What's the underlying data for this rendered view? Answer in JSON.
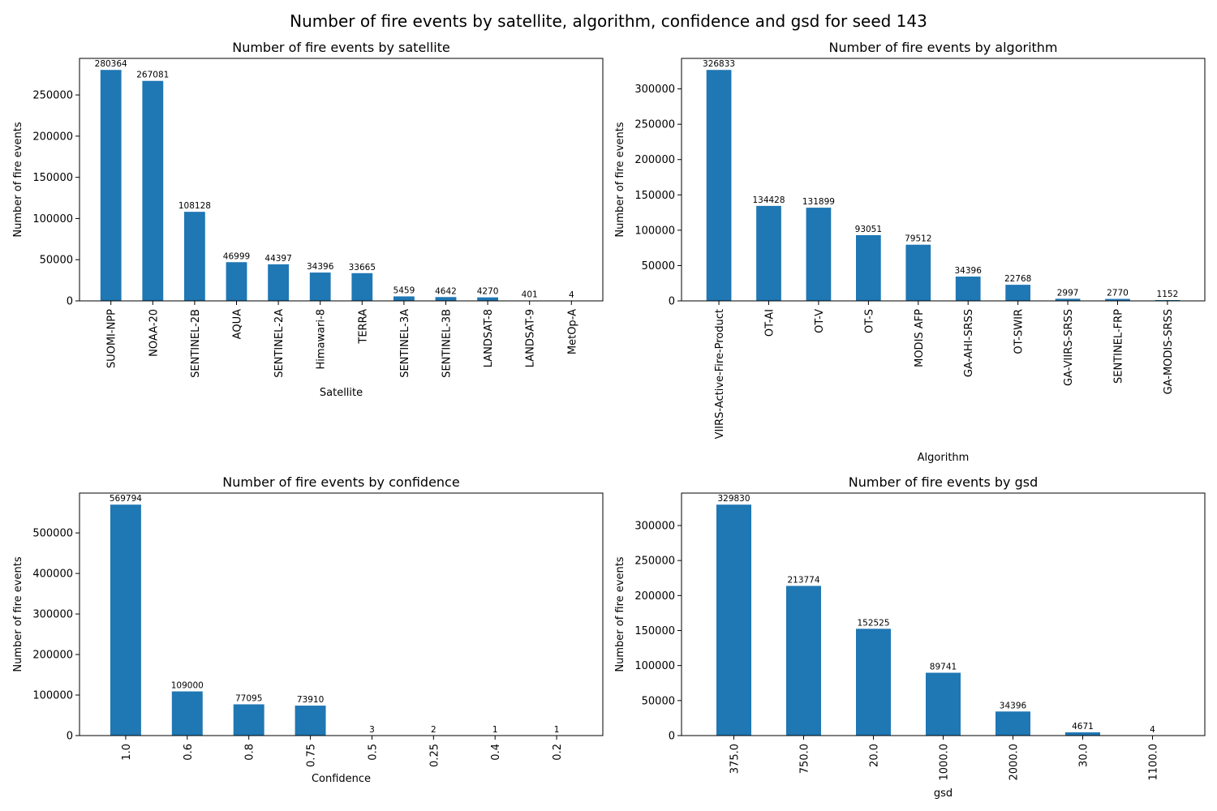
{
  "figure": {
    "suptitle": "Number of fire events by satellite, algorithm, confidence and gsd for seed 143"
  },
  "colors": {
    "bar": "#1f77b4",
    "axis": "#000000",
    "background": "#ffffff"
  },
  "chart_data": [
    {
      "type": "bar",
      "title": "Number of fire events by satellite",
      "xlabel": "Satellite",
      "ylabel": "Number of fire events",
      "categories": [
        "SUOMI-NPP",
        "NOAA-20",
        "SENTINEL-2B",
        "AQUA",
        "SENTINEL-2A",
        "Himawari-8",
        "TERRA",
        "SENTINEL-3A",
        "SENTINEL-3B",
        "LANDSAT-8",
        "LANDSAT-9",
        "MetOp-A"
      ],
      "values": [
        280364,
        267081,
        108128,
        46999,
        44397,
        34396,
        33665,
        5459,
        4642,
        4270,
        401,
        4
      ],
      "yticks": [
        0,
        50000,
        100000,
        150000,
        200000,
        250000
      ],
      "ylim": [
        0,
        294382
      ],
      "grid": false
    },
    {
      "type": "bar",
      "title": "Number of fire events by algorithm",
      "xlabel": "Algorithm",
      "ylabel": "Number of fire events",
      "categories": [
        "VIIRS-Active-Fire-Product",
        "OT-AI",
        "OT-V",
        "OT-S",
        "MODIS AFP",
        "GA-AHI-SRSS",
        "OT-SWIR",
        "GA-VIIRS-SRSS",
        "SENTINEL-FRP",
        "GA-MODIS-SRSS"
      ],
      "values": [
        326833,
        134428,
        131899,
        93051,
        79512,
        34396,
        22768,
        2997,
        2770,
        1152
      ],
      "yticks": [
        0,
        50000,
        100000,
        150000,
        200000,
        250000,
        300000
      ],
      "ylim": [
        0,
        343175
      ],
      "grid": false
    },
    {
      "type": "bar",
      "title": "Number of fire events by confidence",
      "xlabel": "Confidence",
      "ylabel": "Number of fire events",
      "categories": [
        "1.0",
        "0.6",
        "0.8",
        "0.75",
        "0.5",
        "0.25",
        "0.4",
        "0.2"
      ],
      "values": [
        569794,
        109000,
        77095,
        73910,
        3,
        2,
        1,
        1
      ],
      "yticks": [
        0,
        100000,
        200000,
        300000,
        400000,
        500000
      ],
      "ylim": [
        0,
        598284
      ],
      "grid": false
    },
    {
      "type": "bar",
      "title": "Number of fire events by gsd",
      "xlabel": "gsd",
      "ylabel": "Number of fire events",
      "categories": [
        "375.0",
        "750.0",
        "20.0",
        "1000.0",
        "2000.0",
        "30.0",
        "1100.0"
      ],
      "values": [
        329830,
        213774,
        152525,
        89741,
        34396,
        4671,
        4
      ],
      "yticks": [
        0,
        50000,
        100000,
        150000,
        200000,
        250000,
        300000
      ],
      "ylim": [
        0,
        346322
      ],
      "grid": false
    }
  ]
}
